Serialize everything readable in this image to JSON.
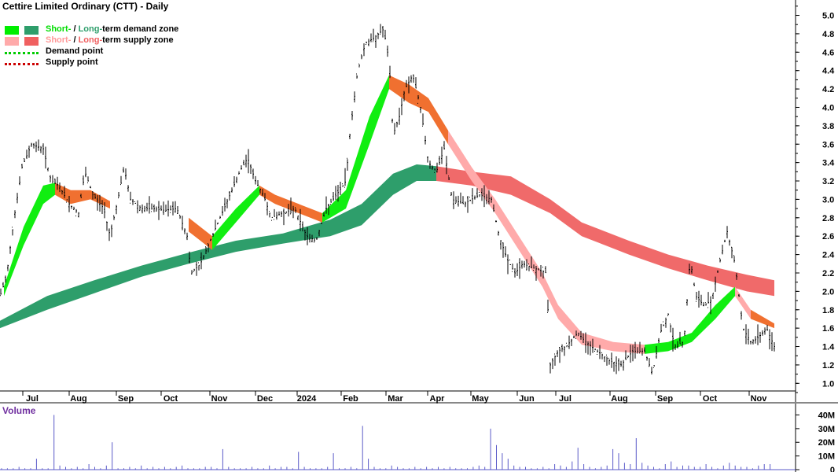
{
  "chart_data": {
    "type": "line",
    "title": "Cettire Limited Ordinary (CTT) - Daily",
    "legend": {
      "placement": "top-left",
      "entries": [
        {
          "part1": "Short-",
          "sep": " / ",
          "part2": "Long-",
          "rest": "term demand zone",
          "c1": "#00ee00",
          "c2": "#2e9e6b"
        },
        {
          "part1": "Short-",
          "sep": " / ",
          "part2": "Long-",
          "rest": "term supply zone",
          "c1": "#ffaaaa",
          "c2": "#f06060"
        },
        {
          "label": "Demand point",
          "color": "#00cc00"
        },
        {
          "label": "Supply point",
          "color": "#cc0000"
        }
      ]
    },
    "price_axis": {
      "ticks": [
        "5.0",
        "4.8",
        "4.6",
        "4.4",
        "4.2",
        "4.0",
        "3.8",
        "3.6",
        "3.4",
        "3.2",
        "3.0",
        "2.8",
        "2.6",
        "2.4",
        "2.2",
        "2.0",
        "1.8",
        "1.6",
        "1.4",
        "1.2",
        "1.0"
      ],
      "range": [
        0.9,
        5.15
      ]
    },
    "x_axis": {
      "labels": [
        "Jul",
        "Aug",
        "Sep",
        "Oct",
        "Nov",
        "Dec",
        "2024",
        "Feb",
        "Mar",
        "Apr",
        "May",
        "Jun",
        "Jul",
        "Aug",
        "Sep",
        "Oct",
        "Nov"
      ]
    },
    "volume_panel": {
      "title": "Volume",
      "ticks": [
        "40M",
        "30M",
        "20M",
        "10M",
        "0"
      ],
      "range": [
        0,
        42
      ]
    },
    "price_path": [
      [
        0,
        1.95
      ],
      [
        8,
        2.15
      ],
      [
        18,
        2.8
      ],
      [
        28,
        3.35
      ],
      [
        40,
        3.6
      ],
      [
        55,
        3.55
      ],
      [
        65,
        3.2
      ],
      [
        75,
        3.15
      ],
      [
        88,
        2.95
      ],
      [
        100,
        2.85
      ],
      [
        108,
        3.3
      ],
      [
        118,
        3.05
      ],
      [
        132,
        2.9
      ],
      [
        140,
        2.6
      ],
      [
        150,
        3.0
      ],
      [
        158,
        3.35
      ],
      [
        166,
        3.0
      ],
      [
        180,
        2.9
      ],
      [
        195,
        2.9
      ],
      [
        210,
        2.88
      ],
      [
        225,
        2.9
      ],
      [
        238,
        2.6
      ],
      [
        243,
        2.2
      ],
      [
        255,
        2.3
      ],
      [
        265,
        2.5
      ],
      [
        280,
        2.8
      ],
      [
        295,
        3.1
      ],
      [
        305,
        3.3
      ],
      [
        315,
        3.45
      ],
      [
        325,
        3.2
      ],
      [
        335,
        3.05
      ],
      [
        345,
        2.8
      ],
      [
        360,
        2.85
      ],
      [
        375,
        2.9
      ],
      [
        390,
        2.6
      ],
      [
        402,
        2.55
      ],
      [
        415,
        2.9
      ],
      [
        428,
        3.05
      ],
      [
        440,
        3.2
      ],
      [
        445,
        3.7
      ],
      [
        455,
        4.4
      ],
      [
        465,
        4.7
      ],
      [
        475,
        4.75
      ],
      [
        488,
        4.85
      ],
      [
        495,
        4.5
      ],
      [
        500,
        3.7
      ],
      [
        508,
        3.9
      ],
      [
        515,
        4.2
      ],
      [
        525,
        4.35
      ],
      [
        535,
        4.0
      ],
      [
        545,
        3.4
      ],
      [
        555,
        3.3
      ],
      [
        565,
        3.55
      ],
      [
        575,
        3.0
      ],
      [
        590,
        2.95
      ],
      [
        610,
        3.05
      ],
      [
        625,
        3.0
      ],
      [
        635,
        2.6
      ],
      [
        645,
        2.35
      ],
      [
        655,
        2.2
      ],
      [
        665,
        2.3
      ],
      [
        680,
        2.25
      ],
      [
        695,
        2.2
      ],
      [
        700,
        1.2
      ],
      [
        710,
        1.35
      ],
      [
        720,
        1.4
      ],
      [
        735,
        1.55
      ],
      [
        745,
        1.45
      ],
      [
        760,
        1.35
      ],
      [
        775,
        1.25
      ],
      [
        790,
        1.2
      ],
      [
        805,
        1.35
      ],
      [
        820,
        1.35
      ],
      [
        830,
        1.1
      ],
      [
        840,
        1.55
      ],
      [
        850,
        1.75
      ],
      [
        858,
        1.4
      ],
      [
        870,
        1.45
      ],
      [
        878,
        2.35
      ],
      [
        885,
        1.95
      ],
      [
        895,
        1.85
      ],
      [
        905,
        1.9
      ],
      [
        915,
        2.3
      ],
      [
        925,
        2.65
      ],
      [
        935,
        2.3
      ],
      [
        945,
        1.6
      ],
      [
        955,
        1.45
      ],
      [
        965,
        1.5
      ],
      [
        975,
        1.6
      ],
      [
        985,
        1.4
      ]
    ],
    "long_demand": [
      [
        0,
        1.68,
        1.6
      ],
      [
        60,
        1.95,
        1.8
      ],
      [
        120,
        2.12,
        1.98
      ],
      [
        180,
        2.28,
        2.16
      ],
      [
        240,
        2.42,
        2.3
      ],
      [
        300,
        2.55,
        2.43
      ],
      [
        360,
        2.63,
        2.52
      ],
      [
        420,
        2.78,
        2.6
      ],
      [
        460,
        2.95,
        2.72
      ],
      [
        500,
        3.28,
        3.05
      ],
      [
        530,
        3.38,
        3.2
      ],
      [
        555,
        3.36,
        3.2
      ]
    ],
    "long_supply": [
      [
        555,
        3.36,
        3.2
      ],
      [
        600,
        3.3,
        3.15
      ],
      [
        650,
        3.25,
        3.05
      ],
      [
        700,
        3.0,
        2.85
      ],
      [
        740,
        2.75,
        2.6
      ],
      [
        800,
        2.55,
        2.4
      ],
      [
        850,
        2.4,
        2.25
      ],
      [
        900,
        2.28,
        2.12
      ],
      [
        950,
        2.18,
        2.0
      ],
      [
        985,
        2.12,
        1.95
      ]
    ],
    "short_demand": [
      [
        5,
        2.05,
        1.95
      ],
      [
        30,
        2.7,
        2.5
      ],
      [
        55,
        3.15,
        2.95
      ],
      [
        70,
        3.18,
        3.05
      ]
    ],
    "short_supply": [
      [
        70,
        3.18,
        3.05
      ],
      [
        90,
        3.1,
        2.95
      ],
      [
        115,
        3.1,
        3.0
      ],
      [
        140,
        2.98,
        2.9
      ]
    ],
    "mid_short": [
      [
        240,
        2.8,
        2.65
      ],
      [
        270,
        2.6,
        2.45
      ],
      [
        300,
        2.9,
        2.75
      ],
      [
        330,
        3.15,
        3.05
      ],
      [
        350,
        3.05,
        2.95
      ],
      [
        380,
        2.95,
        2.85
      ],
      [
        410,
        2.85,
        2.75
      ],
      [
        440,
        3.1,
        2.9
      ],
      [
        470,
        3.9,
        3.6
      ],
      [
        495,
        4.35,
        4.2
      ],
      [
        520,
        4.25,
        4.05
      ],
      [
        545,
        4.1,
        3.95
      ],
      [
        570,
        3.75,
        3.6
      ],
      [
        600,
        3.35,
        3.2
      ],
      [
        630,
        3.0,
        2.85
      ],
      [
        660,
        2.6,
        2.45
      ],
      [
        690,
        2.2,
        2.05
      ],
      [
        710,
        1.85,
        1.7
      ],
      [
        740,
        1.55,
        1.42
      ],
      [
        780,
        1.45,
        1.35
      ],
      [
        820,
        1.42,
        1.32
      ],
      [
        850,
        1.45,
        1.35
      ],
      [
        880,
        1.55,
        1.45
      ],
      [
        910,
        1.85,
        1.7
      ],
      [
        935,
        2.05,
        1.95
      ],
      [
        955,
        1.8,
        1.7
      ],
      [
        985,
        1.65,
        1.6
      ]
    ],
    "volume_bars": [
      1,
      1,
      1,
      2,
      1,
      1,
      8,
      1,
      1,
      40,
      3,
      2,
      1,
      2,
      1,
      4,
      2,
      1,
      3,
      20,
      1,
      1,
      2,
      1,
      3,
      1,
      2,
      1,
      2,
      1,
      2,
      3,
      1,
      1,
      1,
      2,
      2,
      1,
      15,
      2,
      1,
      1,
      1,
      2,
      1,
      1,
      3,
      1,
      2,
      2,
      1,
      13,
      2,
      1,
      1,
      1,
      2,
      12,
      1,
      1,
      2,
      1,
      32,
      8,
      2,
      1,
      1,
      3,
      2,
      1,
      1,
      2,
      1,
      2,
      1,
      2,
      1,
      2,
      1,
      1,
      1,
      2,
      3,
      2,
      30,
      18,
      12,
      8,
      3,
      2,
      2,
      1,
      1,
      2,
      1,
      4,
      3,
      2,
      6,
      16,
      4,
      2,
      1,
      2,
      3,
      15,
      12,
      5,
      4,
      23,
      5,
      3,
      2,
      1,
      4,
      6,
      2,
      3,
      3,
      2,
      2,
      4,
      2,
      1,
      3,
      5,
      3,
      2,
      2,
      1,
      3,
      4,
      4
    ]
  }
}
